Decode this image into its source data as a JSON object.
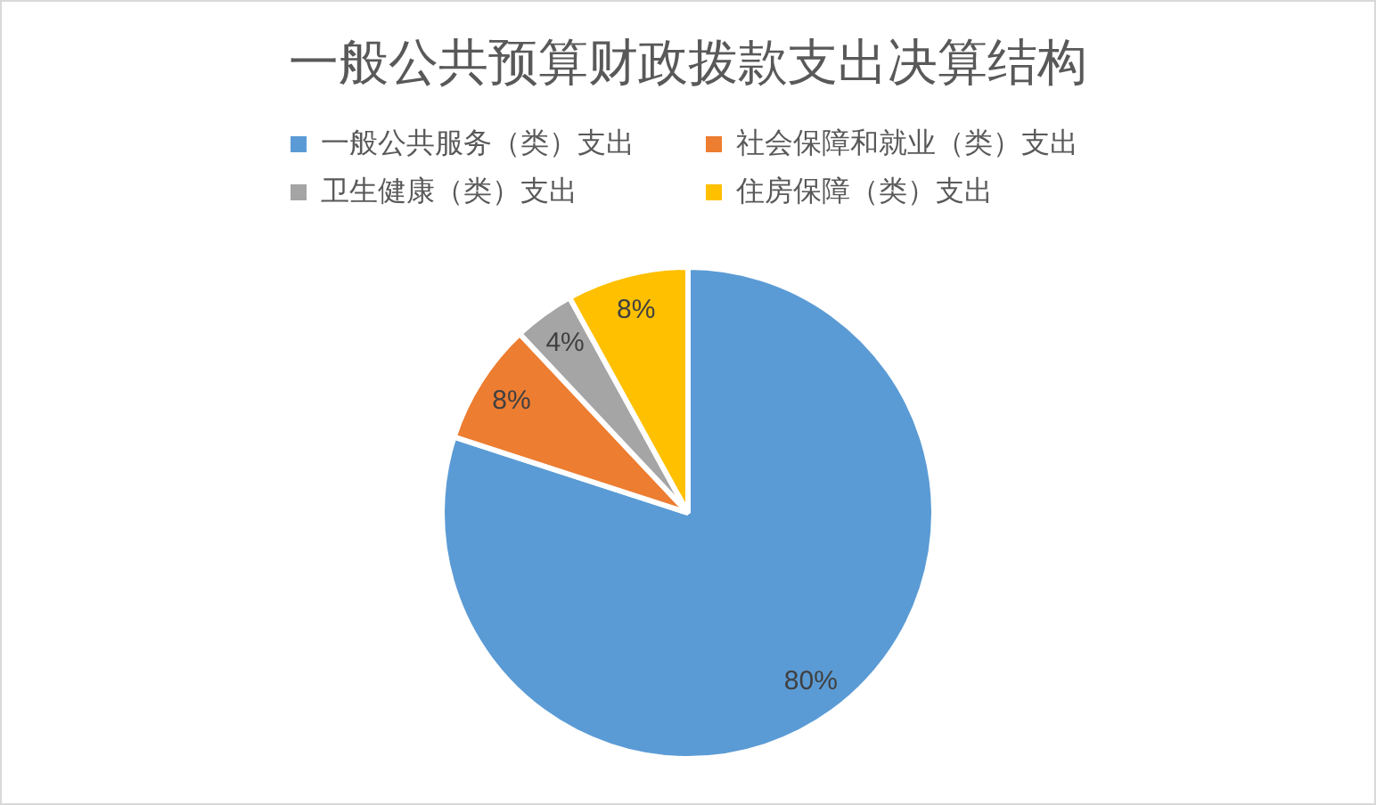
{
  "chart_data": {
    "type": "pie",
    "title": "一般公共预算财政拨款支出决算结构",
    "categories": [
      "一般公共服务（类）支出",
      "社会保障和就业（类）支出",
      "卫生健康（类）支出",
      "住房保障（类）支出"
    ],
    "values": [
      80,
      8,
      4,
      8
    ],
    "colors": [
      "#5b9bd5",
      "#ed7d31",
      "#a5a5a5",
      "#ffc000"
    ],
    "value_labels": [
      "80%",
      "8%",
      "4%",
      "8%"
    ],
    "legend": "top"
  }
}
